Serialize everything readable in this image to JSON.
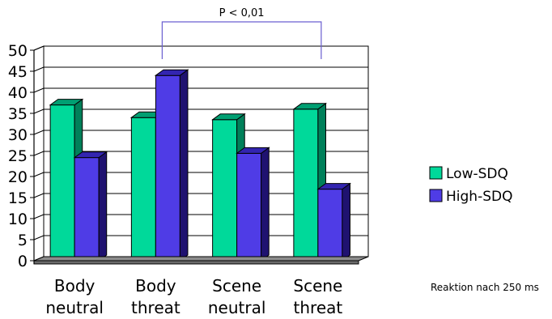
{
  "chart_data": {
    "type": "bar",
    "style": "3d-clustered-column",
    "categories": [
      {
        "line1": "Body",
        "line2": "neutral"
      },
      {
        "line1": "Body",
        "line2": "threat"
      },
      {
        "line1": "Scene",
        "line2": "neutral"
      },
      {
        "line1": "Scene",
        "line2": "threat"
      }
    ],
    "series": [
      {
        "name": "Low-SDQ",
        "color": "#00d99a",
        "side_color": "#00805a",
        "top_color": "#009f72",
        "values": [
          37,
          34,
          33.5,
          36
        ]
      },
      {
        "name": "High-SDQ",
        "color": "#4f3ce6",
        "side_color": "#1f1270",
        "top_color": "#3325b0",
        "values": [
          24.5,
          44,
          25.5,
          17
        ]
      }
    ],
    "ylim": [
      0,
      50
    ],
    "yticks": [
      "0",
      "5",
      "10",
      "15",
      "20",
      "25",
      "30",
      "35",
      "40",
      "45",
      "50"
    ],
    "grid": true,
    "legend_position": "right",
    "significance": {
      "label": "P < 0,01",
      "from_category": 1,
      "to_category": 3,
      "color": "#6a5fd0"
    },
    "note": "Reaktion nach 250 ms",
    "title": "",
    "xlabel": "",
    "ylabel": ""
  }
}
